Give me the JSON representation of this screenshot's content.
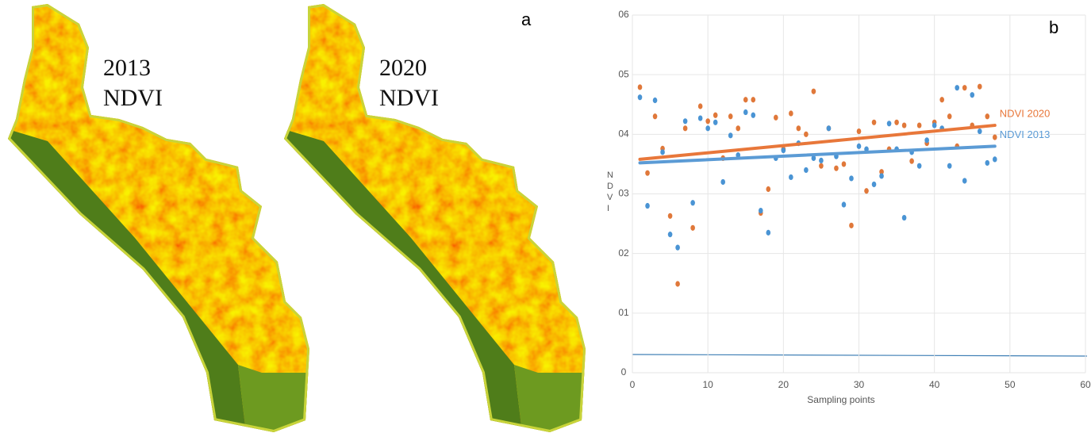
{
  "panel_a": {
    "label": "a",
    "maps": [
      {
        "year": "2013",
        "index": "NDVI"
      },
      {
        "year": "2020",
        "index": "NDVI"
      }
    ]
  },
  "chart_data": {
    "type": "scatter",
    "panel_label": "b",
    "x_label": "Sampling points",
    "y_label": "NDVI",
    "x": [
      1,
      2,
      3,
      4,
      5,
      6,
      7,
      8,
      9,
      10,
      11,
      12,
      13,
      14,
      15,
      16,
      17,
      18,
      19,
      20,
      21,
      22,
      23,
      24,
      25,
      26,
      27,
      28,
      29,
      30,
      31,
      32,
      33,
      34,
      35,
      36,
      37,
      38,
      39,
      40,
      41,
      42,
      43,
      44,
      45,
      46,
      47,
      48
    ],
    "series": [
      {
        "name": "NDVI 2020",
        "color": "#e0783a",
        "line_color": "#e8773a",
        "values": [
          0.479,
          0.335,
          0.43,
          0.376,
          0.263,
          0.149,
          0.41,
          0.243,
          0.447,
          0.422,
          0.432,
          0.36,
          0.43,
          0.41,
          0.458,
          0.458,
          0.268,
          0.308,
          0.428,
          0.375,
          0.435,
          0.41,
          0.4,
          0.472,
          0.347,
          0.41,
          0.343,
          0.35,
          0.247,
          0.405,
          0.305,
          0.42,
          0.337,
          0.375,
          0.42,
          0.415,
          0.355,
          0.415,
          0.385,
          0.42,
          0.458,
          0.43,
          0.38,
          0.478,
          0.415,
          0.48,
          0.43,
          0.395
        ],
        "trend_x": [
          1,
          48
        ],
        "trend": [
          0.358,
          0.415
        ]
      },
      {
        "name": "NDVI 2013",
        "color": "#4a94d4",
        "line_color": "#5b9bd5",
        "values": [
          0.462,
          0.28,
          0.457,
          0.37,
          0.232,
          0.21,
          0.422,
          0.285,
          0.427,
          0.41,
          0.42,
          0.32,
          0.398,
          0.365,
          0.437,
          0.432,
          0.272,
          0.235,
          0.36,
          0.373,
          0.328,
          0.385,
          0.34,
          0.36,
          0.356,
          0.41,
          0.363,
          0.282,
          0.326,
          0.38,
          0.375,
          0.316,
          0.33,
          0.418,
          0.375,
          0.26,
          0.37,
          0.347,
          0.39,
          0.415,
          0.41,
          0.347,
          0.478,
          0.322,
          0.466,
          0.405,
          0.352,
          0.358
        ],
        "trend_x": [
          1,
          48
        ],
        "trend": [
          0.352,
          0.38
        ]
      }
    ],
    "xlim": [
      0,
      60
    ],
    "ylim": [
      0,
      0.6
    ],
    "xticks": [
      0,
      10,
      20,
      30,
      40,
      50,
      60
    ],
    "yticks": [
      0,
      {
        "value": 0.1,
        "label": "01"
      },
      {
        "value": 0.2,
        "label": "02"
      },
      {
        "value": 0.3,
        "label": "03"
      },
      {
        "value": 0.4,
        "label": "04"
      },
      {
        "value": 0.5,
        "label": "05"
      },
      {
        "value": 0.6,
        "label": "06"
      }
    ],
    "grid": true
  }
}
